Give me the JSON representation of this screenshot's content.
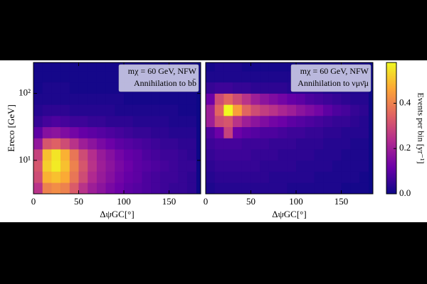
{
  "chart_data": [
    {
      "type": "heatmap",
      "annotation": [
        "mχ = 60 GeV, NFW",
        "Annihilation to bb̄"
      ],
      "xlabel": "ΔψGC[°]",
      "ylabel": "Ereco [GeV]",
      "x_bins": [
        0,
        10,
        20,
        30,
        40,
        50,
        60,
        70,
        80,
        90,
        100,
        110,
        120,
        130,
        140,
        150,
        160,
        170,
        180
      ],
      "y_bins": [
        3.16,
        4.64,
        6.81,
        10,
        14.7,
        21.5,
        31.6,
        46.4,
        68.1,
        100,
        147,
        215,
        316
      ],
      "xlim": [
        0,
        185
      ],
      "ylim": [
        3.16,
        290
      ],
      "ylog": true,
      "xticks": [
        0,
        50,
        100,
        150
      ],
      "yticks": [
        {
          "value": 10,
          "label": "10¹"
        },
        {
          "value": 100,
          "label": "10²"
        }
      ],
      "values": [
        [
          0.25,
          0.4,
          0.42,
          0.4,
          0.33,
          0.25,
          0.2,
          0.17,
          0.14,
          0.12,
          0.1,
          0.09,
          0.08,
          0.07,
          0.06,
          0.05,
          0.05,
          0.04
        ],
        [
          0.3,
          0.48,
          0.5,
          0.47,
          0.38,
          0.3,
          0.23,
          0.19,
          0.16,
          0.13,
          0.11,
          0.1,
          0.08,
          0.07,
          0.06,
          0.06,
          0.05,
          0.04
        ],
        [
          0.32,
          0.52,
          0.56,
          0.5,
          0.4,
          0.32,
          0.25,
          0.2,
          0.17,
          0.14,
          0.12,
          0.1,
          0.09,
          0.08,
          0.07,
          0.06,
          0.05,
          0.05
        ],
        [
          0.28,
          0.5,
          0.55,
          0.48,
          0.38,
          0.3,
          0.24,
          0.19,
          0.16,
          0.13,
          0.11,
          0.1,
          0.08,
          0.07,
          0.06,
          0.06,
          0.05,
          0.04
        ],
        [
          0.18,
          0.32,
          0.34,
          0.3,
          0.25,
          0.2,
          0.17,
          0.14,
          0.12,
          0.1,
          0.09,
          0.08,
          0.07,
          0.06,
          0.05,
          0.05,
          0.04,
          0.04
        ],
        [
          0.1,
          0.16,
          0.17,
          0.15,
          0.13,
          0.11,
          0.1,
          0.09,
          0.08,
          0.07,
          0.06,
          0.05,
          0.05,
          0.04,
          0.04,
          0.03,
          0.03,
          0.03
        ],
        [
          0.05,
          0.07,
          0.08,
          0.07,
          0.06,
          0.06,
          0.05,
          0.05,
          0.04,
          0.04,
          0.04,
          0.03,
          0.03,
          0.03,
          0.03,
          0.02,
          0.02,
          0.02
        ],
        [
          0.03,
          0.04,
          0.04,
          0.04,
          0.03,
          0.03,
          0.03,
          0.03,
          0.03,
          0.02,
          0.02,
          0.02,
          0.02,
          0.02,
          0.02,
          0.02,
          0.01,
          0.01
        ],
        [
          0.02,
          0.02,
          0.02,
          0.02,
          0.02,
          0.02,
          0.02,
          0.02,
          0.02,
          0.02,
          0.01,
          0.01,
          0.01,
          0.01,
          0.01,
          0.01,
          0.01,
          0.01
        ],
        [
          0.01,
          0.02,
          0.02,
          0.02,
          0.01,
          0.01,
          0.01,
          0.01,
          0.01,
          0.01,
          0.01,
          0.01,
          0.01,
          0.01,
          0.01,
          0.01,
          0.01,
          0.01
        ],
        [
          0.01,
          0.01,
          0.01,
          0.01,
          0.01,
          0.01,
          0.01,
          0.01,
          0.01,
          0.01,
          0.01,
          0.01,
          0.01,
          0.01,
          0.01,
          0.01,
          0.01,
          0.01
        ],
        [
          0.01,
          0.01,
          0.01,
          0.01,
          0.01,
          0.01,
          0.01,
          0.01,
          0.01,
          0.01,
          0.01,
          0.01,
          0.01,
          0.01,
          0.01,
          0.01,
          0.01,
          0.01
        ]
      ]
    },
    {
      "type": "heatmap",
      "annotation": [
        "mχ = 60 GeV, NFW",
        "Annihilation to νμν̄μ"
      ],
      "xlabel": "ΔψGC[°]",
      "x_bins": [
        0,
        10,
        20,
        30,
        40,
        50,
        60,
        70,
        80,
        90,
        100,
        110,
        120,
        130,
        140,
        150,
        160,
        170,
        180
      ],
      "y_bins": [
        3.16,
        4.64,
        6.81,
        10,
        14.7,
        21.5,
        31.6,
        46.4,
        68.1,
        100,
        147,
        215,
        316
      ],
      "xlim": [
        0,
        185
      ],
      "ylim": [
        3.16,
        290
      ],
      "ylog": true,
      "xticks": [
        0,
        50,
        100,
        150
      ],
      "values": [
        [
          0.02,
          0.03,
          0.03,
          0.03,
          0.03,
          0.03,
          0.03,
          0.03,
          0.03,
          0.02,
          0.02,
          0.02,
          0.02,
          0.02,
          0.02,
          0.01,
          0.01,
          0.01
        ],
        [
          0.03,
          0.04,
          0.04,
          0.04,
          0.04,
          0.04,
          0.04,
          0.03,
          0.03,
          0.03,
          0.03,
          0.03,
          0.02,
          0.02,
          0.02,
          0.02,
          0.02,
          0.01
        ],
        [
          0.04,
          0.05,
          0.05,
          0.05,
          0.05,
          0.05,
          0.04,
          0.04,
          0.04,
          0.04,
          0.03,
          0.03,
          0.03,
          0.03,
          0.02,
          0.02,
          0.02,
          0.02
        ],
        [
          0.05,
          0.06,
          0.06,
          0.06,
          0.06,
          0.05,
          0.05,
          0.05,
          0.04,
          0.04,
          0.04,
          0.04,
          0.03,
          0.03,
          0.03,
          0.02,
          0.02,
          0.02
        ],
        [
          0.06,
          0.07,
          0.07,
          0.07,
          0.06,
          0.06,
          0.06,
          0.05,
          0.05,
          0.05,
          0.04,
          0.04,
          0.04,
          0.03,
          0.03,
          0.03,
          0.02,
          0.02
        ],
        [
          0.08,
          0.12,
          0.28,
          0.12,
          0.1,
          0.09,
          0.08,
          0.08,
          0.07,
          0.06,
          0.06,
          0.05,
          0.05,
          0.04,
          0.04,
          0.03,
          0.03,
          0.03
        ],
        [
          0.2,
          0.3,
          0.32,
          0.25,
          0.2,
          0.17,
          0.15,
          0.13,
          0.12,
          0.1,
          0.09,
          0.08,
          0.07,
          0.06,
          0.05,
          0.05,
          0.04,
          0.03
        ],
        [
          0.2,
          0.35,
          0.58,
          0.45,
          0.35,
          0.3,
          0.27,
          0.25,
          0.22,
          0.2,
          0.17,
          0.15,
          0.13,
          0.1,
          0.08,
          0.07,
          0.05,
          0.04
        ],
        [
          0.12,
          0.3,
          0.35,
          0.3,
          0.25,
          0.2,
          0.17,
          0.15,
          0.13,
          0.11,
          0.1,
          0.08,
          0.07,
          0.06,
          0.05,
          0.04,
          0.03,
          0.03
        ],
        [
          0.05,
          0.06,
          0.06,
          0.05,
          0.05,
          0.04,
          0.04,
          0.04,
          0.04,
          0.03,
          0.03,
          0.03,
          0.03,
          0.02,
          0.02,
          0.02,
          0.02,
          0.02
        ],
        [
          0.02,
          0.02,
          0.02,
          0.02,
          0.02,
          0.02,
          0.02,
          0.02,
          0.02,
          0.02,
          0.02,
          0.01,
          0.01,
          0.01,
          0.01,
          0.01,
          0.01,
          0.01
        ],
        [
          0.01,
          0.02,
          0.02,
          0.02,
          0.01,
          0.01,
          0.01,
          0.01,
          0.01,
          0.01,
          0.01,
          0.01,
          0.01,
          0.01,
          0.01,
          0.01,
          0.01,
          0.01
        ]
      ]
    }
  ],
  "colorbar": {
    "label": "Events per bin [yr⁻¹]",
    "lim": [
      0,
      0.58
    ],
    "ticks": [
      0.0,
      0.2,
      0.4
    ],
    "tick_labels": [
      "0.0",
      "0.2",
      "0.4"
    ],
    "colors": [
      "#0d0887",
      "#6a00a8",
      "#b12a90",
      "#e16462",
      "#fca636",
      "#f0f921"
    ]
  }
}
